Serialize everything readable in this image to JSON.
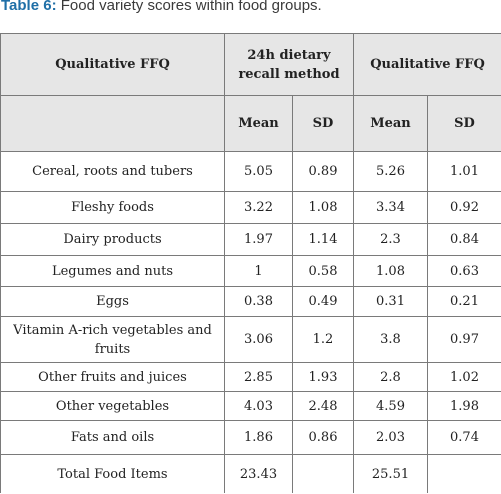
{
  "caption": {
    "label": "Table 6:",
    "text": " Food variety scores within food groups."
  },
  "header": {
    "col1": "Qualitative FFQ",
    "group1": "24h dietary recall method",
    "group2": "Qualitative FFQ",
    "mean1": "Mean",
    "sd1": "SD",
    "mean2": "Mean",
    "sd2": "SD"
  },
  "rows": [
    {
      "name": "Cereal, roots and tubers",
      "mean1": "5.05",
      "sd1": "0.89",
      "mean2": "5.26",
      "sd2": "1.01"
    },
    {
      "name": "Fleshy foods",
      "mean1": "3.22",
      "sd1": "1.08",
      "mean2": "3.34",
      "sd2": "0.92"
    },
    {
      "name": "Dairy products",
      "mean1": "1.97",
      "sd1": "1.14",
      "mean2": "2.3",
      "sd2": "0.84"
    },
    {
      "name": "Legumes and nuts",
      "mean1": "1",
      "sd1": "0.58",
      "mean2": "1.08",
      "sd2": "0.63"
    },
    {
      "name": "Eggs",
      "mean1": "0.38",
      "sd1": "0.49",
      "mean2": "0.31",
      "sd2": "0.21"
    },
    {
      "name": "Vitamin A-rich vegetables and fruits",
      "mean1": "3.06",
      "sd1": "1.2",
      "mean2": "3.8",
      "sd2": "0.97"
    },
    {
      "name": "Other fruits and juices",
      "mean1": "2.85",
      "sd1": "1.93",
      "mean2": "2.8",
      "sd2": "1.02"
    },
    {
      "name": "Other vegetables",
      "mean1": "4.03",
      "sd1": "2.48",
      "mean2": "4.59",
      "sd2": "1.98"
    },
    {
      "name": "Fats and oils",
      "mean1": "1.86",
      "sd1": "0.86",
      "mean2": "2.03",
      "sd2": "0.74"
    },
    {
      "name": "Total Food Items",
      "mean1": "23.43",
      "sd1": "",
      "mean2": "25.51",
      "sd2": ""
    }
  ]
}
